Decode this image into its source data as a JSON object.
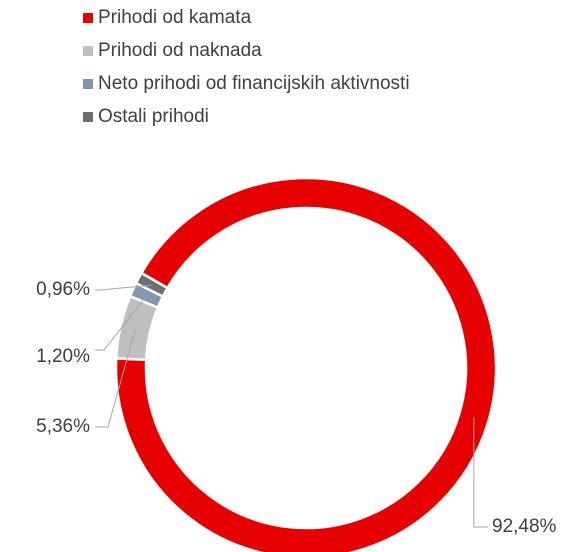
{
  "chart_data": {
    "type": "donut",
    "categories": [
      "Prihodi od kamata",
      "Prihodi od naknada",
      "Neto prihodi od financijskih aktivnosti",
      "Ostali prihodi"
    ],
    "values": [
      92.48,
      5.36,
      1.2,
      0.96
    ],
    "value_labels": [
      "92,48%",
      "5,36%",
      "1,20%",
      "0,96%"
    ],
    "colors": [
      "#e60000",
      "#bfbfbf",
      "#8497b0",
      "#6f6f6f"
    ],
    "legend": "top"
  }
}
